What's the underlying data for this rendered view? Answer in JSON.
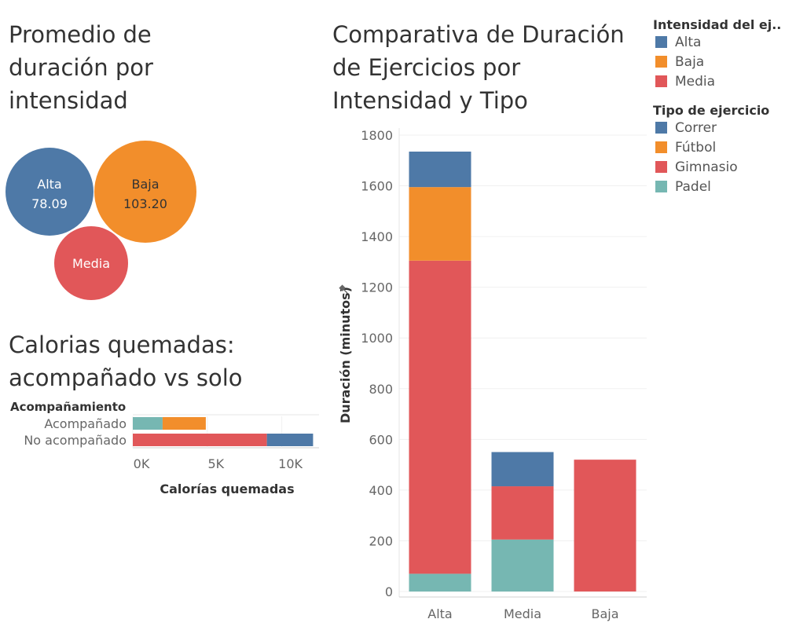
{
  "titles": {
    "bubbles": "Promedio de duración por intensidad",
    "calorias": "Calorias quemadas: acompañado vs solo",
    "main": "Comparativa de Duración de Ejercicios por Intensidad y Tipo"
  },
  "colors": {
    "Alta": "#4e79a7",
    "Baja": "#f28e2b",
    "Media": "#e15759",
    "Correr": "#4e79a7",
    "Fútbol": "#f28e2b",
    "Gimnasio": "#e15759",
    "Padel": "#76b7b2"
  },
  "legends": {
    "intensidad": {
      "title": "Intensidad del ej..",
      "items": [
        "Alta",
        "Baja",
        "Media"
      ]
    },
    "tipo": {
      "title": "Tipo de ejercicio",
      "items": [
        "Correr",
        "Fútbol",
        "Gimnasio",
        "Padel"
      ]
    }
  },
  "chart_data": [
    {
      "type": "bubble",
      "title": "Promedio de duración por intensidad",
      "items": [
        {
          "label": "Alta",
          "value": 78.09,
          "value_label": "78.09"
        },
        {
          "label": "Baja",
          "value": 103.2,
          "value_label": "103.20"
        },
        {
          "label": "Media",
          "value": null,
          "value_label": ""
        }
      ]
    },
    {
      "type": "bar",
      "orientation": "horizontal",
      "stacked": true,
      "title": "Calorias quemadas: acompañado vs solo",
      "row_header": "Acompañamiento",
      "categories": [
        "Acompañado",
        "No acompañado"
      ],
      "series": [
        {
          "name": "Padel",
          "values": [
            2000,
            0
          ]
        },
        {
          "name": "Fútbol",
          "values": [
            2900,
            0
          ]
        },
        {
          "name": "Gimnasio",
          "values": [
            0,
            9000
          ]
        },
        {
          "name": "Correr",
          "values": [
            0,
            3100
          ]
        }
      ],
      "xlabel": "Calorías quemadas",
      "xticks": [
        "0K",
        "5K",
        "10K"
      ],
      "xtick_values": [
        0,
        5000,
        10000
      ],
      "xlim": [
        0,
        12500
      ]
    },
    {
      "type": "bar",
      "stacked": true,
      "title": "Comparativa de Duración de Ejercicios por Intensidad y Tipo",
      "categories": [
        "Alta",
        "Media",
        "Baja"
      ],
      "series": [
        {
          "name": "Padel",
          "values": [
            70,
            205,
            0
          ]
        },
        {
          "name": "Gimnasio",
          "values": [
            1235,
            210,
            520
          ]
        },
        {
          "name": "Fútbol",
          "values": [
            290,
            0,
            0
          ]
        },
        {
          "name": "Correr",
          "values": [
            140,
            135,
            0
          ]
        }
      ],
      "ylabel": "Duración (minutos)",
      "yticks": [
        0,
        200,
        400,
        600,
        800,
        1000,
        1200,
        1400,
        1600,
        1800
      ],
      "ylim": [
        0,
        1800
      ],
      "grid": true
    }
  ]
}
